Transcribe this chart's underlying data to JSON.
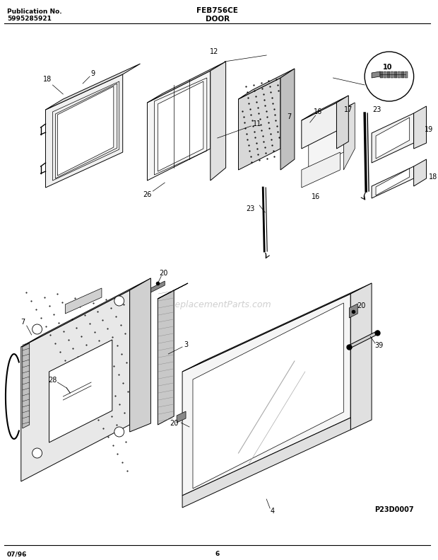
{
  "pub_label": "Publication No.",
  "pub_number": "5995285921",
  "model": "FEB756CE",
  "section": "DOOR",
  "date": "07/96",
  "page": "6",
  "diagram_id": "P23D0007",
  "watermark": "eReplacementParts.com",
  "bg_color": "#ffffff",
  "fig_width": 6.2,
  "fig_height": 7.91
}
